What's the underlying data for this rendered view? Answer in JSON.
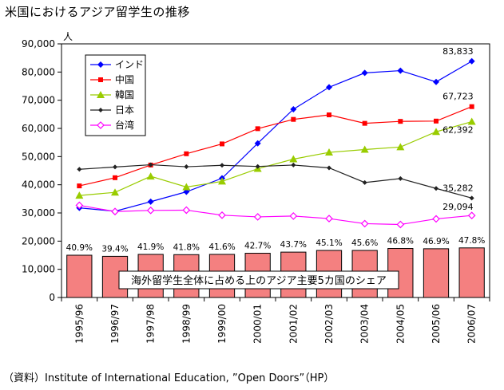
{
  "title": "米国におけるアジア留学生の推移",
  "source": "（資料）Institute of International Education, ”Open Doors”（HP）",
  "chart_data": {
    "type": "line",
    "ylabel": "人",
    "ylim": [
      0,
      90000
    ],
    "yticks": [
      "0",
      "10,000",
      "20,000",
      "30,000",
      "40,000",
      "50,000",
      "60,000",
      "70,000",
      "80,000",
      "90,000"
    ],
    "categories": [
      "1995/96",
      "1996/97",
      "1997/98",
      "1998/99",
      "1999/00",
      "2000/01",
      "2001/02",
      "2002/03",
      "2003/04",
      "2004/05",
      "2005/06",
      "2006/07"
    ],
    "bars": {
      "values": [
        15000,
        14600,
        15300,
        15200,
        15300,
        15700,
        16100,
        16700,
        16700,
        17400,
        17300,
        17600
      ],
      "pct_labels": [
        "40.9%",
        "39.4%",
        "41.9%",
        "41.8%",
        "41.6%",
        "42.7%",
        "43.7%",
        "45.1%",
        "45.6%",
        "46.8%",
        "46.9%",
        "47.8%"
      ],
      "annotation": "海外留学生全体に占める上のアジア主要5カ国のシェア",
      "color": "#f48080"
    },
    "series": [
      {
        "name": "インド",
        "color": "#0000ff",
        "marker": "diamond",
        "values": [
          31800,
          30600,
          34000,
          37500,
          42300,
          54700,
          66800,
          74600,
          79700,
          80500,
          76500,
          83833
        ],
        "end_label": "83,833"
      },
      {
        "name": "中国",
        "color": "#ff0000",
        "marker": "square",
        "values": [
          39600,
          42500,
          47000,
          51000,
          54500,
          59900,
          63200,
          64800,
          61800,
          62500,
          62600,
          67723
        ],
        "end_label": "67,723"
      },
      {
        "name": "韓国",
        "color": "#99cc00",
        "marker": "triangle",
        "values": [
          36200,
          37300,
          43000,
          39200,
          41200,
          45700,
          49100,
          51500,
          52500,
          53400,
          58800,
          62392
        ],
        "end_label": "62,392"
      },
      {
        "name": "日本",
        "color": "#222222",
        "marker": "diamond-small",
        "values": [
          45500,
          46300,
          47100,
          46400,
          46900,
          46500,
          47000,
          46000,
          40800,
          42200,
          38700,
          35282
        ],
        "end_label": "35,282"
      },
      {
        "name": "台湾",
        "color": "#ff00ff",
        "marker": "diamond-open",
        "values": [
          32700,
          30500,
          30900,
          31000,
          29200,
          28600,
          28900,
          28000,
          26200,
          25900,
          27900,
          29094
        ],
        "end_label": "29,094"
      }
    ],
    "legend_position": "top-left"
  }
}
